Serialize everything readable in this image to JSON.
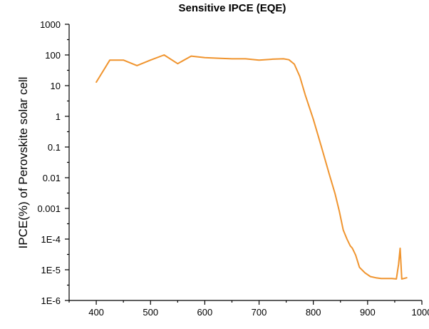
{
  "chart_data": {
    "type": "line",
    "title": "Sensitive IPCE (EQE)",
    "xlabel": "",
    "ylabel": "IPCE(%) of Perovskite solar cell",
    "xlim": [
      350,
      1000
    ],
    "ylim": [
      1e-06,
      1000
    ],
    "yscale": "log",
    "xticks": [
      400,
      500,
      600,
      700,
      800,
      900,
      1000
    ],
    "xtick_labels": [
      "400",
      "500",
      "600",
      "700",
      "800",
      "900",
      "1000"
    ],
    "yticks": [
      1e-06,
      1e-05,
      0.0001,
      0.001,
      0.01,
      0.1,
      1,
      10,
      100,
      1000
    ],
    "ytick_labels": [
      "1E-6",
      "1E-5",
      "1E-4",
      "0.001",
      "0.01",
      "0.1",
      "1",
      "10",
      "100",
      "1000"
    ],
    "grid": false,
    "series_color": "#f0942e",
    "series": [
      {
        "x": [
          400,
          425,
          450,
          475,
          500,
          525,
          550,
          575,
          600,
          625,
          650,
          675,
          700,
          725,
          745,
          755,
          765,
          775,
          785,
          800,
          815,
          830,
          840,
          848,
          855,
          862,
          868,
          872,
          878,
          885,
          895,
          905,
          915,
          925,
          935,
          945,
          953,
          957,
          960,
          963,
          967,
          972
        ],
        "y": [
          13,
          68,
          68,
          45,
          68,
          100,
          52,
          92,
          82,
          78,
          75,
          75,
          68,
          73,
          75,
          70,
          50,
          20,
          5,
          0.8,
          0.1,
          0.012,
          0.003,
          0.0008,
          0.0002,
          0.0001,
          6e-05,
          5e-05,
          3e-05,
          1.2e-05,
          8e-06,
          6e-06,
          5.5e-06,
          5.2e-06,
          5.2e-06,
          5.2e-06,
          5e-06,
          1.5e-05,
          5e-05,
          5e-06,
          5.2e-06,
          5.5e-06
        ]
      }
    ]
  }
}
